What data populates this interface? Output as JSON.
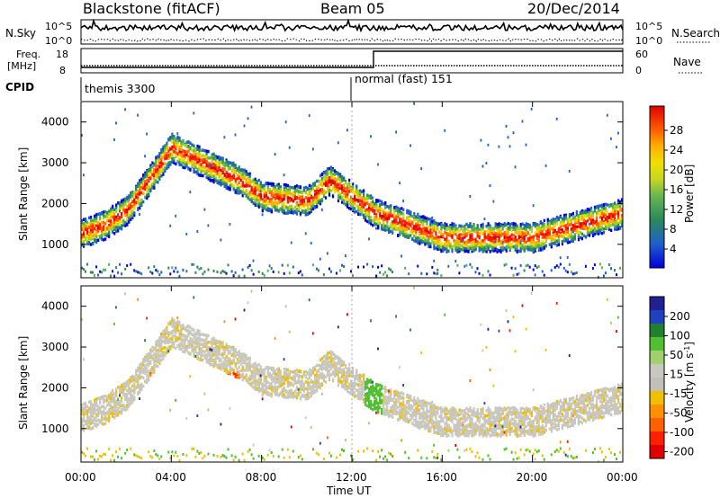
{
  "header": {
    "station": "Blackstone (fitACF)",
    "beam": "Beam 05",
    "date": "20/Dec/2014"
  },
  "panels": {
    "nsky": {
      "left_label": "N.Sky",
      "right_label": "N.Search",
      "left_ticks": [
        "10^5",
        "10^0"
      ],
      "right_ticks": [
        "10^5",
        "10^0"
      ]
    },
    "freq": {
      "left_label_1": "Freq.",
      "left_label_2": "[MHz]",
      "right_label": "Nave",
      "left_ticks": [
        "18",
        "8"
      ],
      "right_ticks": [
        "60",
        "0"
      ]
    },
    "cpid": {
      "label": "CPID",
      "segments": [
        {
          "label": "themis 3300",
          "start_hour": 0
        },
        {
          "label": "normal (fast) 151",
          "start_hour": 12
        }
      ]
    },
    "power": {
      "ylabel": "Slant Range [km]",
      "colorbar_label": "Power [dB]",
      "colorbar_ticks": [
        "28",
        "24",
        "20",
        "16",
        "12",
        "8",
        "4"
      ],
      "colors": [
        "#0000e0",
        "#2060c8",
        "#2a8a5a",
        "#5ab05a",
        "#a8d020",
        "#f0e000",
        "#ffb000",
        "#ff6000",
        "#ff2000",
        "#e00000"
      ]
    },
    "velocity": {
      "ylabel": "Slant Range [km]",
      "colorbar_label": "Velocity [m s^-1]",
      "colorbar_ticks": [
        "200",
        "100",
        "50",
        "15",
        "-15",
        "-50",
        "-100",
        "-200"
      ],
      "colors": [
        "#202090",
        "#2040c0",
        "#208030",
        "#50c030",
        "#a0d070",
        "#c8c8c0",
        "#c0c0b8",
        "#f0c000",
        "#ff9000",
        "#ff6000",
        "#ff2000",
        "#e00000"
      ]
    }
  },
  "xaxis": {
    "label": "Time UT",
    "ticks": [
      "00:00",
      "04:00",
      "08:00",
      "12:00",
      "16:00",
      "20:00",
      "00:00"
    ]
  },
  "chart_data": {
    "type": "heatmap",
    "x_unit": "hours UT",
    "xlim": [
      0,
      24
    ],
    "yaxis_ticks": [
      "4000",
      "3000",
      "2000",
      "1000"
    ],
    "ylim_km": [
      180,
      4500
    ],
    "power_scatter_band_km": [
      {
        "hour": 0,
        "center": 1300
      },
      {
        "hour": 1,
        "center": 1500
      },
      {
        "hour": 2,
        "center": 1850
      },
      {
        "hour": 3,
        "center": 2600
      },
      {
        "hour": 4,
        "center": 3400
      },
      {
        "hour": 7,
        "center": 2600
      },
      {
        "hour": 8,
        "center": 2200
      },
      {
        "hour": 10,
        "center": 2100
      },
      {
        "hour": 11,
        "center": 2600
      },
      {
        "hour": 12,
        "center": 2200
      },
      {
        "hour": 13,
        "center": 1800
      },
      {
        "hour": 16,
        "center": 1200
      },
      {
        "hour": 20,
        "center": 1200
      },
      {
        "hour": 24,
        "center": 1800
      }
    ],
    "nsky_trace": "noise level near 10^5 throughout day",
    "nave_step": [
      {
        "hour": 0,
        "nave": 8
      },
      {
        "hour": 13,
        "nave": 60
      }
    ],
    "freq_MHz": 10
  }
}
